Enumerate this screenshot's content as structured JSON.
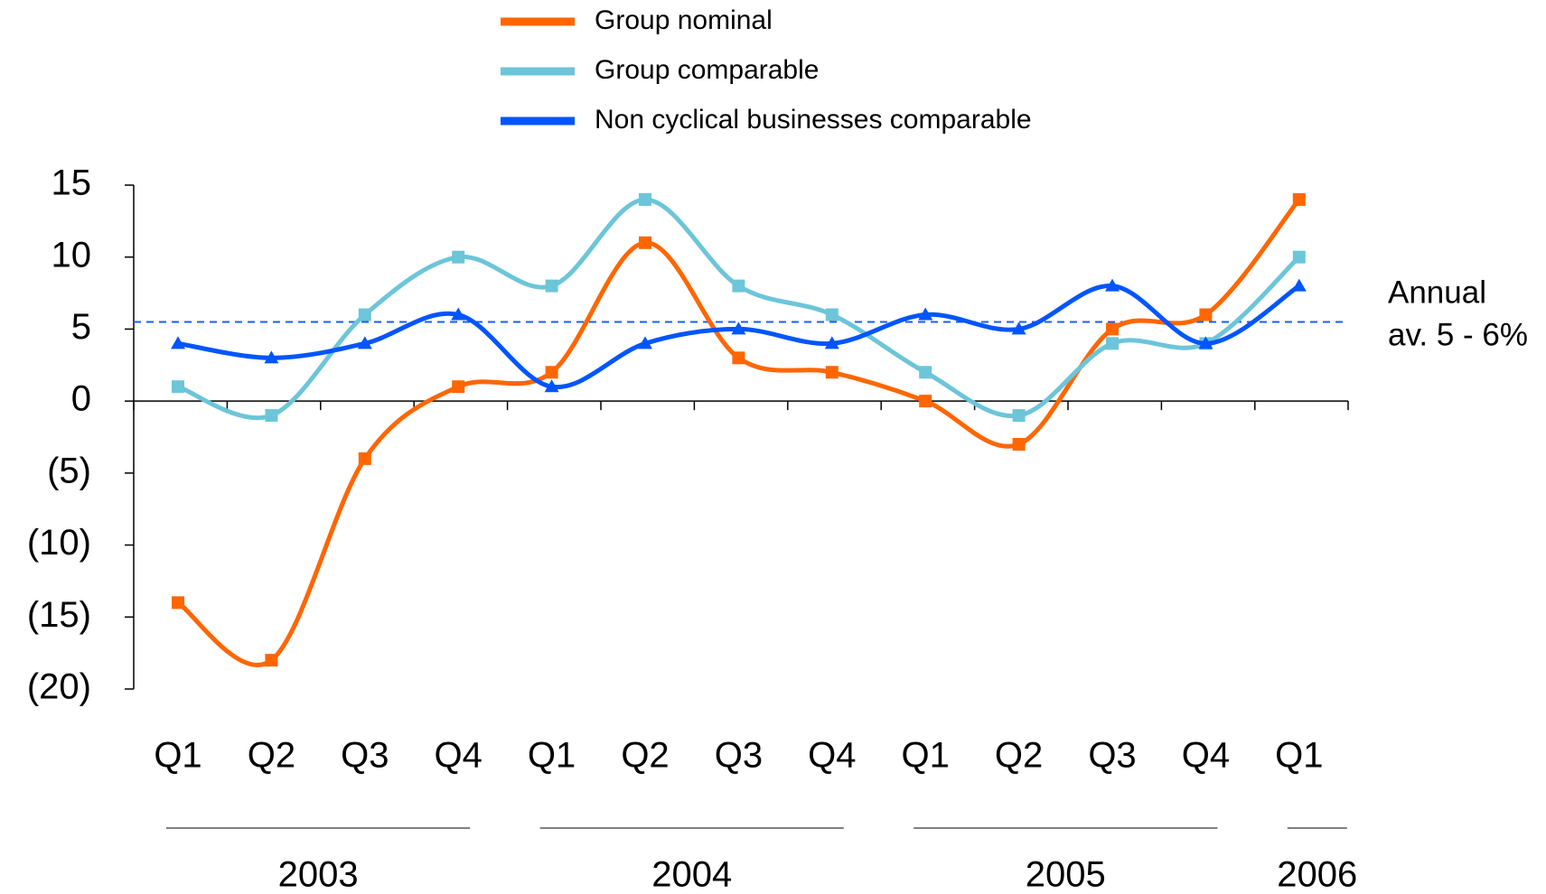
{
  "chart_data": {
    "type": "line",
    "categories": [
      "Q1",
      "Q2",
      "Q3",
      "Q4",
      "Q1",
      "Q2",
      "Q3",
      "Q4",
      "Q1",
      "Q2",
      "Q3",
      "Q4",
      "Q1"
    ],
    "category_groups": [
      "2003",
      "2004",
      "2005",
      "2006"
    ],
    "series": [
      {
        "name": "Group nominal",
        "color": "#ff6600",
        "marker": "square",
        "values": [
          -14,
          -18,
          -4,
          1,
          2,
          11,
          3,
          2,
          0,
          -3,
          5,
          6,
          14
        ]
      },
      {
        "name": "Group comparable",
        "color": "#6cc5d9",
        "marker": "square",
        "values": [
          1,
          -1,
          6,
          10,
          8,
          14,
          8,
          6,
          2,
          -1,
          4,
          4,
          10
        ]
      },
      {
        "name": "Non cyclical businesses comparable",
        "color": "#0055ff",
        "marker": "triangle",
        "values": [
          4,
          3,
          4,
          6,
          1,
          4,
          5,
          4,
          6,
          5,
          8,
          4,
          8
        ]
      }
    ],
    "ylim": [
      -20,
      15
    ],
    "yticks": [
      15,
      10,
      5,
      0,
      {
        "value": -5,
        "label": "(5)"
      },
      {
        "value": -10,
        "label": "(10)"
      },
      {
        "value": -15,
        "label": "(15)"
      },
      {
        "value": -20,
        "label": "(20)"
      }
    ],
    "reference_line": {
      "value": 5.5,
      "color": "#1a5cff",
      "label": [
        "Annual",
        "av. 5 - 6%"
      ]
    },
    "legend": "top"
  }
}
